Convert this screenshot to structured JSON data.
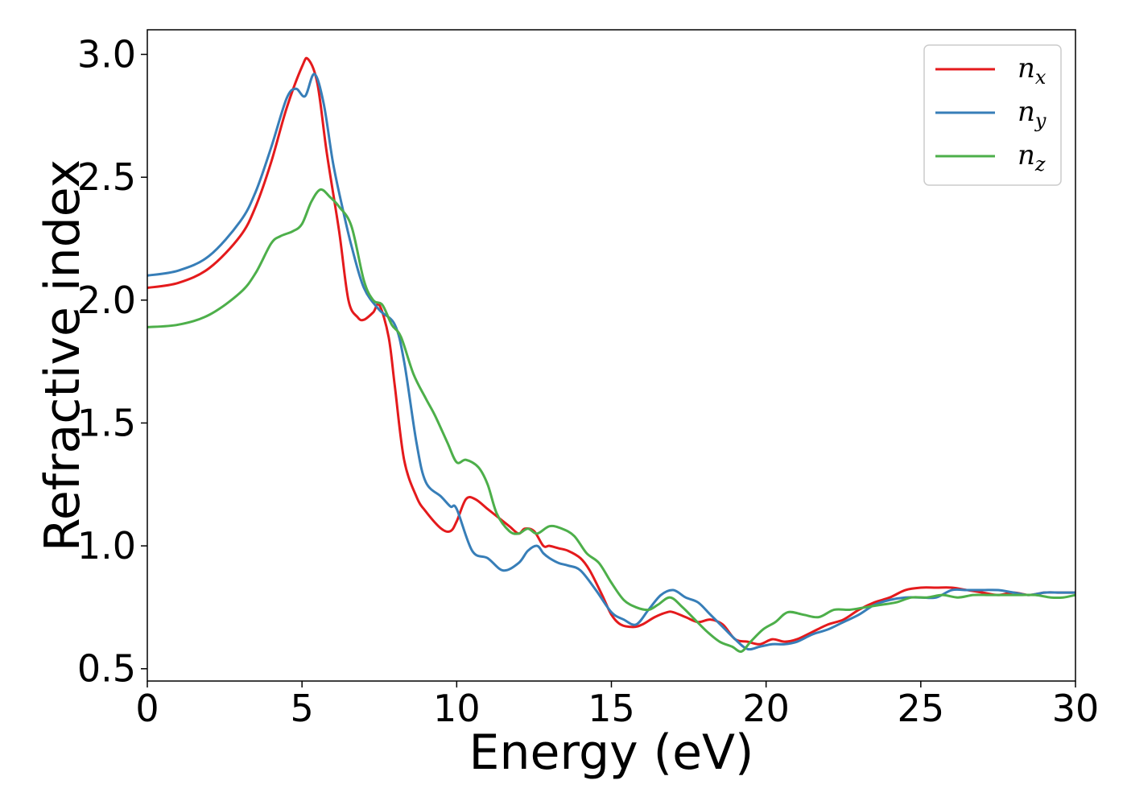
{
  "chart_data": {
    "type": "line",
    "title": "",
    "xlabel": "Energy (eV)",
    "ylabel": "Refractive index",
    "xlim": [
      0,
      30
    ],
    "ylim": [
      0.45,
      3.1
    ],
    "xticks": [
      0,
      5,
      10,
      15,
      20,
      25,
      30
    ],
    "xtick_labels": [
      "0",
      "5",
      "10",
      "15",
      "20",
      "25",
      "30"
    ],
    "yticks": [
      0.5,
      1.0,
      1.5,
      2.0,
      2.5,
      3.0
    ],
    "ytick_labels": [
      "0.5",
      "1.0",
      "1.5",
      "2.0",
      "2.5",
      "3.0"
    ],
    "grid": false,
    "legend_position": "top-right",
    "series": [
      {
        "name": "n",
        "subscript": "x",
        "color": "#e41a1c",
        "x": [
          0,
          1,
          2,
          3,
          3.5,
          4,
          4.5,
          5,
          5.2,
          5.5,
          5.8,
          6.2,
          6.5,
          6.8,
          7,
          7.3,
          7.5,
          7.8,
          8,
          8.3,
          8.7,
          9,
          9.5,
          9.8,
          10,
          10.3,
          10.6,
          11,
          11.3,
          11.7,
          12,
          12.2,
          12.5,
          12.8,
          13,
          13.3,
          13.6,
          14,
          14.3,
          14.7,
          15,
          15.3,
          15.7,
          16,
          16.4,
          16.8,
          17,
          17.4,
          17.8,
          18.2,
          18.6,
          19,
          19.4,
          19.8,
          20.2,
          20.6,
          21,
          21.5,
          22,
          22.5,
          23,
          23.5,
          24,
          24.5,
          25,
          25.5,
          26,
          26.5,
          27,
          27.5,
          28,
          28.5,
          29,
          29.5,
          30
        ],
        "y": [
          2.05,
          2.07,
          2.13,
          2.26,
          2.38,
          2.56,
          2.78,
          2.95,
          2.98,
          2.88,
          2.6,
          2.28,
          2.0,
          1.93,
          1.92,
          1.95,
          1.98,
          1.85,
          1.65,
          1.35,
          1.2,
          1.14,
          1.07,
          1.06,
          1.1,
          1.19,
          1.19,
          1.15,
          1.12,
          1.08,
          1.05,
          1.07,
          1.06,
          1.0,
          1.0,
          0.99,
          0.98,
          0.95,
          0.9,
          0.8,
          0.72,
          0.68,
          0.67,
          0.68,
          0.71,
          0.73,
          0.73,
          0.71,
          0.69,
          0.7,
          0.68,
          0.62,
          0.61,
          0.6,
          0.62,
          0.61,
          0.62,
          0.65,
          0.68,
          0.7,
          0.74,
          0.77,
          0.79,
          0.82,
          0.83,
          0.83,
          0.83,
          0.82,
          0.81,
          0.8,
          0.81,
          0.8,
          0.81,
          0.81,
          0.81
        ]
      },
      {
        "name": "n",
        "subscript": "y",
        "color": "#377eb8",
        "x": [
          0,
          1,
          2,
          3,
          3.5,
          4,
          4.5,
          4.8,
          5.1,
          5.4,
          5.7,
          6,
          6.3,
          6.6,
          7,
          7.5,
          8,
          8.3,
          8.7,
          9,
          9.5,
          9.8,
          10,
          10.5,
          11,
          11.5,
          12,
          12.3,
          12.6,
          12.8,
          13,
          13.3,
          13.6,
          14,
          14.5,
          15,
          15.4,
          15.8,
          16.2,
          16.6,
          17,
          17.4,
          17.8,
          18.2,
          18.6,
          19,
          19.4,
          19.8,
          20.2,
          20.6,
          21,
          21.5,
          22,
          22.5,
          23,
          23.5,
          24,
          24.5,
          25,
          25.5,
          26,
          26.5,
          27,
          27.5,
          28,
          28.5,
          29,
          29.5,
          30
        ],
        "y": [
          2.1,
          2.12,
          2.18,
          2.32,
          2.44,
          2.62,
          2.82,
          2.86,
          2.83,
          2.92,
          2.8,
          2.56,
          2.38,
          2.22,
          2.05,
          1.96,
          1.9,
          1.75,
          1.42,
          1.26,
          1.2,
          1.16,
          1.15,
          0.98,
          0.95,
          0.9,
          0.93,
          0.98,
          1.0,
          0.97,
          0.95,
          0.93,
          0.92,
          0.9,
          0.82,
          0.73,
          0.7,
          0.68,
          0.74,
          0.8,
          0.82,
          0.79,
          0.77,
          0.72,
          0.67,
          0.62,
          0.58,
          0.59,
          0.6,
          0.6,
          0.61,
          0.64,
          0.66,
          0.69,
          0.72,
          0.76,
          0.78,
          0.79,
          0.79,
          0.79,
          0.82,
          0.82,
          0.82,
          0.82,
          0.81,
          0.8,
          0.81,
          0.81,
          0.81
        ]
      },
      {
        "name": "n",
        "subscript": "z",
        "color": "#4daf4a",
        "x": [
          0,
          1,
          2,
          3,
          3.5,
          4,
          4.3,
          4.7,
          5,
          5.3,
          5.6,
          5.9,
          6.2,
          6.6,
          7,
          7.3,
          7.6,
          7.9,
          8.2,
          8.6,
          9,
          9.3,
          9.7,
          10,
          10.3,
          10.7,
          11,
          11.3,
          11.7,
          12,
          12.3,
          12.6,
          13,
          13.4,
          13.8,
          14.2,
          14.6,
          15,
          15.4,
          15.8,
          16.2,
          16.5,
          16.9,
          17.3,
          17.7,
          18.1,
          18.5,
          18.9,
          19.2,
          19.5,
          19.9,
          20.3,
          20.7,
          21.2,
          21.7,
          22.2,
          22.7,
          23.2,
          23.7,
          24.2,
          24.7,
          25.2,
          25.7,
          26.2,
          26.7,
          27.2,
          27.7,
          28.2,
          28.7,
          29.2,
          29.6,
          30
        ],
        "y": [
          1.89,
          1.9,
          1.94,
          2.03,
          2.11,
          2.23,
          2.26,
          2.28,
          2.31,
          2.4,
          2.45,
          2.42,
          2.38,
          2.3,
          2.08,
          2.0,
          1.98,
          1.9,
          1.85,
          1.7,
          1.6,
          1.53,
          1.42,
          1.34,
          1.35,
          1.32,
          1.25,
          1.13,
          1.06,
          1.05,
          1.07,
          1.05,
          1.08,
          1.07,
          1.04,
          0.97,
          0.93,
          0.85,
          0.78,
          0.75,
          0.74,
          0.76,
          0.79,
          0.75,
          0.7,
          0.65,
          0.61,
          0.59,
          0.57,
          0.61,
          0.66,
          0.69,
          0.73,
          0.72,
          0.71,
          0.74,
          0.74,
          0.75,
          0.76,
          0.77,
          0.79,
          0.79,
          0.8,
          0.79,
          0.8,
          0.8,
          0.8,
          0.8,
          0.8,
          0.79,
          0.79,
          0.8
        ]
      }
    ]
  }
}
